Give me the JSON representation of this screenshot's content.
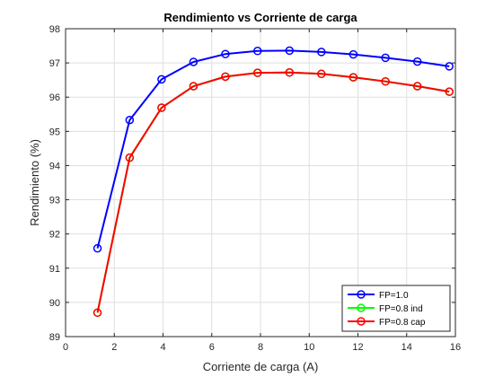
{
  "chart_data": {
    "type": "line",
    "title": "Rendimiento vs Corriente de carga",
    "xlabel": "Corriente de carga (A)",
    "ylabel": "Rendimiento (%)",
    "xlim": [
      0,
      16
    ],
    "ylim": [
      89,
      98
    ],
    "xticks": [
      0,
      2,
      4,
      6,
      8,
      10,
      12,
      14,
      16
    ],
    "yticks": [
      89,
      90,
      91,
      92,
      93,
      94,
      95,
      96,
      97,
      98
    ],
    "grid": true,
    "legend_position": "bottom-right",
    "x": [
      1.31,
      2.63,
      3.94,
      5.25,
      6.56,
      7.88,
      9.19,
      10.5,
      11.81,
      13.13,
      14.44,
      15.75
    ],
    "series": [
      {
        "name": "FP=1.0",
        "color": "#0000ff",
        "values": [
          91.58,
          95.33,
          96.52,
          97.03,
          97.26,
          97.35,
          97.36,
          97.32,
          97.25,
          97.15,
          97.04,
          96.9
        ]
      },
      {
        "name": "FP=0.8 ind",
        "color": "#00ff00",
        "values": [
          89.7,
          94.23,
          95.69,
          96.32,
          96.6,
          96.71,
          96.72,
          96.68,
          96.58,
          96.46,
          96.32,
          96.16
        ]
      },
      {
        "name": "FP=0.8 cap",
        "color": "#ff0000",
        "values": [
          89.7,
          94.23,
          95.69,
          96.32,
          96.6,
          96.71,
          96.72,
          96.68,
          96.58,
          96.46,
          96.32,
          96.16
        ]
      }
    ]
  }
}
